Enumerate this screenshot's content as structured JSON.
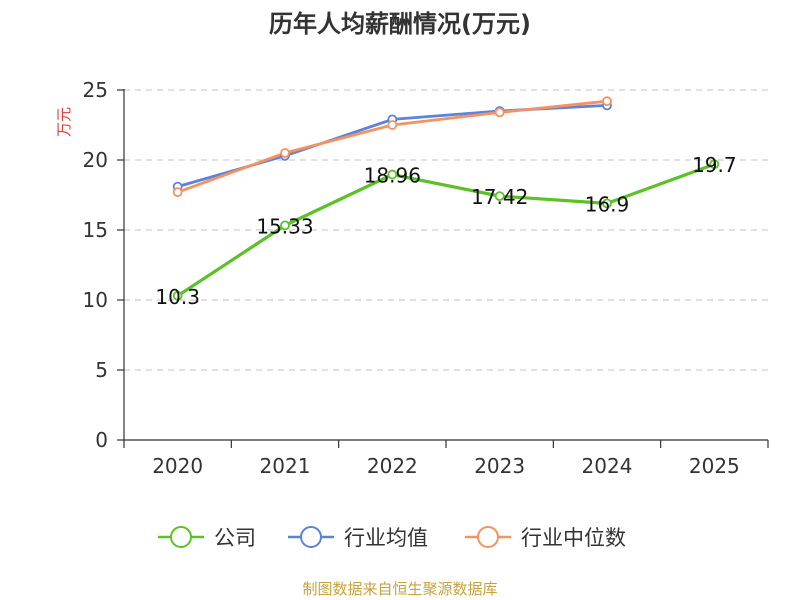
{
  "chart_data": {
    "type": "line",
    "title": "历年人均薪酬情况(万元)",
    "ylabel": "万元",
    "xlabel": "",
    "categories": [
      "2020",
      "2021",
      "2022",
      "2023",
      "2024",
      "2025"
    ],
    "ylim": [
      0,
      25
    ],
    "yticks": [
      0,
      5,
      10,
      15,
      20,
      25
    ],
    "grid": true,
    "legend_position": "bottom",
    "series": [
      {
        "name": "公司",
        "color": "#5cc127",
        "values": [
          10.3,
          15.33,
          18.96,
          17.42,
          16.9,
          19.7
        ],
        "labels": [
          "10.3",
          "15.33",
          "18.96",
          "17.42",
          "16.9",
          "19.7"
        ]
      },
      {
        "name": "行业均值",
        "color": "#5b82dc",
        "values": [
          18.1,
          20.3,
          22.9,
          23.5,
          23.9,
          null
        ]
      },
      {
        "name": "行业中位数",
        "color": "#f59260",
        "values": [
          17.7,
          20.5,
          22.5,
          23.4,
          24.2,
          null
        ]
      }
    ],
    "source": "制图数据来自恒生聚源数据库"
  }
}
